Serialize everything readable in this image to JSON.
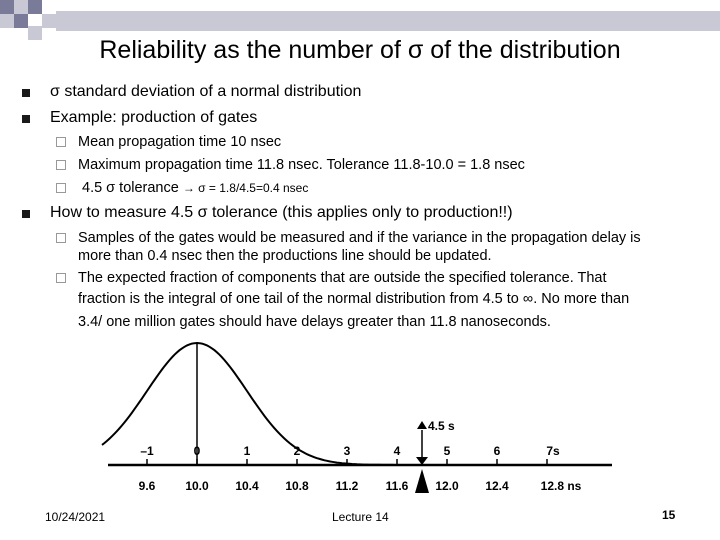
{
  "slide": {
    "title": "Reliability as the number of σ of the  distribution",
    "bullets": [
      {
        "text": "σ  standard deviation of a normal distribution"
      },
      {
        "text": "Example: production of gates",
        "sub": [
          "Mean propagation time 10 nsec",
          "Maximum propagation time 11.8 nsec. Tolerance 11.8-10.0 = 1.8 nsec",
          "4.5 σ tolerance ",
          "→ σ = 1.8/4.5=0.4 nsec"
        ]
      },
      {
        "text": "How to measure 4.5 σ tolerance (this applies only to production!!)",
        "sub": [
          "Samples of the gates would be measured and if the variance in the propagation delay is",
          "more than 0.4 nsec then the productions line should be updated.",
          "The expected fraction of components that are outside the specified tolerance. That",
          "fraction is the integral of one tail of the normal distribution from 4.5 to ∞.  No more than",
          "3.4/ one million gates should have delays greater than 11.8 nanoseconds."
        ]
      }
    ],
    "footer": {
      "date": "10/24/2021",
      "center": "Lecture 14",
      "page": "15"
    }
  },
  "colors": {
    "header_bar": "#c9c9d6",
    "accent_dark": "#7a7a99"
  },
  "figure": {
    "sigma_labels": [
      "–1",
      "0",
      "1",
      "2",
      "3",
      "4",
      "5",
      "6",
      "7s"
    ],
    "ns_labels": [
      "9.6",
      "10.0",
      "10.4",
      "10.8",
      "11.2",
      "11.6",
      "12.0",
      "12.4",
      "12.8 ns"
    ],
    "marker_label": "4.5 s"
  }
}
